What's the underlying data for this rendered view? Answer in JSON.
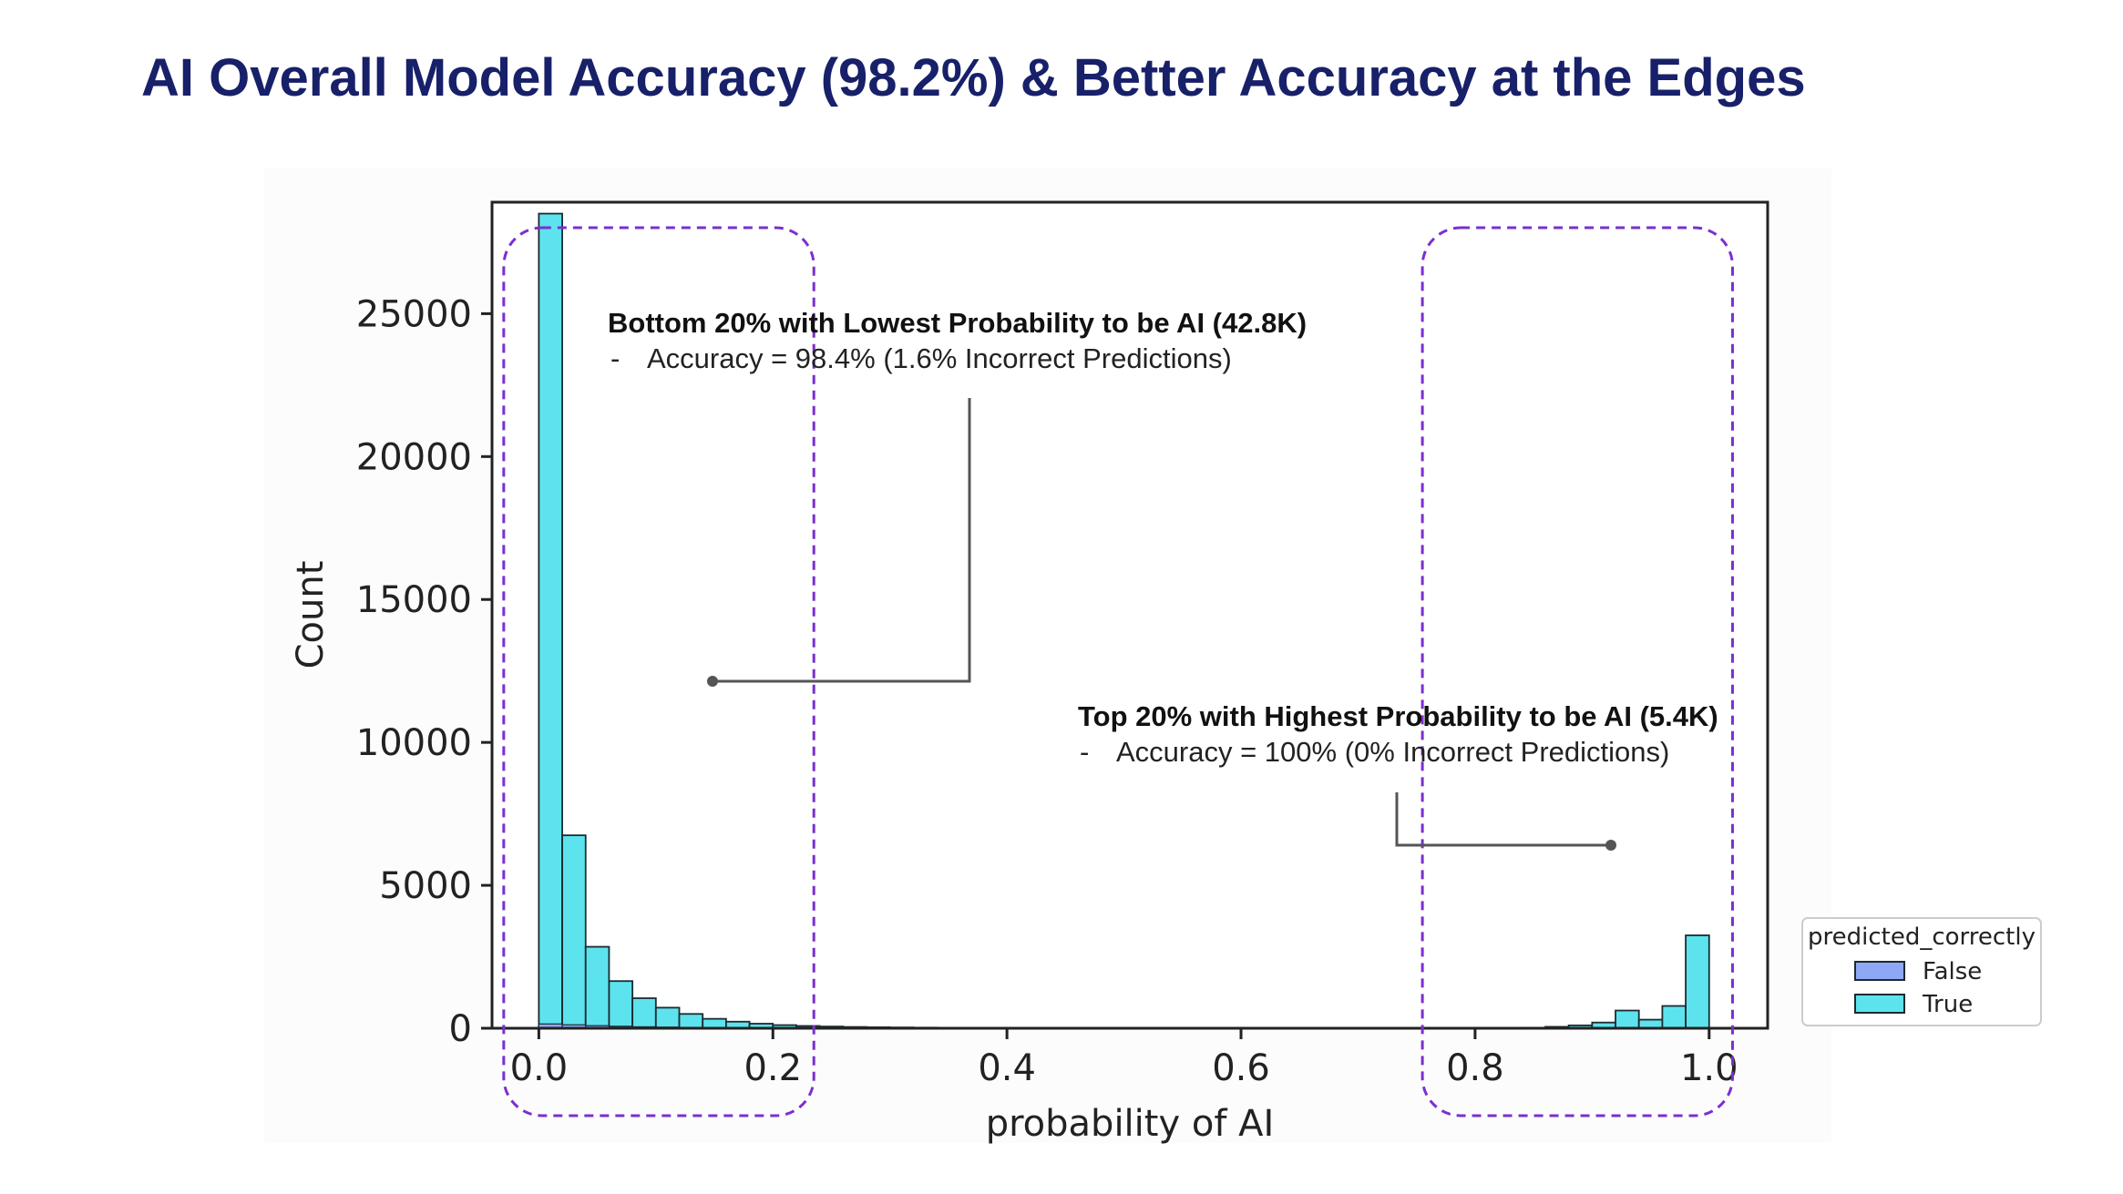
{
  "slide": {
    "title": "AI Overall Model Accuracy (98.2%) & Better Accuracy at the Edges"
  },
  "colors": {
    "title": "#172069",
    "true_bar": "#5de3ee",
    "false_bar": "#8fa8f5",
    "bar_edge": "#1c2a30",
    "highlight_box": "#7b2fd0",
    "callout_line": "#555555"
  },
  "chart_data": {
    "type": "bar",
    "xlabel": "probability of AI",
    "ylabel": "Count",
    "xlim": [
      -0.04,
      1.05
    ],
    "ylim": [
      0,
      28900
    ],
    "bin_width": 0.02,
    "x_ticks": [
      "0.0",
      "0.2",
      "0.4",
      "0.6",
      "0.8",
      "1.0"
    ],
    "x_tick_values": [
      0.0,
      0.2,
      0.4,
      0.6,
      0.8,
      1.0
    ],
    "y_ticks": [
      "0",
      "5000",
      "10000",
      "15000",
      "20000",
      "25000"
    ],
    "y_tick_values": [
      0,
      5000,
      10000,
      15000,
      20000,
      25000
    ],
    "grid": false,
    "legend": {
      "title": "predicted_correctly",
      "placement": "outside-right-bottom",
      "entries": [
        "False",
        "True"
      ]
    },
    "series": [
      {
        "name": "True",
        "bins": [
          {
            "x": 0.0,
            "count": 28500
          },
          {
            "x": 0.02,
            "count": 6750
          },
          {
            "x": 0.04,
            "count": 2850
          },
          {
            "x": 0.06,
            "count": 1650
          },
          {
            "x": 0.08,
            "count": 1050
          },
          {
            "x": 0.1,
            "count": 720
          },
          {
            "x": 0.12,
            "count": 500
          },
          {
            "x": 0.14,
            "count": 330
          },
          {
            "x": 0.16,
            "count": 230
          },
          {
            "x": 0.18,
            "count": 160
          },
          {
            "x": 0.2,
            "count": 110
          },
          {
            "x": 0.22,
            "count": 80
          },
          {
            "x": 0.24,
            "count": 60
          },
          {
            "x": 0.26,
            "count": 45
          },
          {
            "x": 0.28,
            "count": 35
          },
          {
            "x": 0.3,
            "count": 28
          },
          {
            "x": 0.32,
            "count": 22
          },
          {
            "x": 0.34,
            "count": 18
          },
          {
            "x": 0.36,
            "count": 15
          },
          {
            "x": 0.38,
            "count": 12
          },
          {
            "x": 0.84,
            "count": 20
          },
          {
            "x": 0.86,
            "count": 50
          },
          {
            "x": 0.88,
            "count": 100
          },
          {
            "x": 0.9,
            "count": 200
          },
          {
            "x": 0.92,
            "count": 620
          },
          {
            "x": 0.94,
            "count": 300
          },
          {
            "x": 0.96,
            "count": 780
          },
          {
            "x": 0.98,
            "count": 3250
          }
        ]
      },
      {
        "name": "False",
        "bins": [
          {
            "x": 0.0,
            "count": 150
          },
          {
            "x": 0.02,
            "count": 120
          },
          {
            "x": 0.04,
            "count": 90
          },
          {
            "x": 0.06,
            "count": 70
          },
          {
            "x": 0.08,
            "count": 50
          },
          {
            "x": 0.1,
            "count": 40
          },
          {
            "x": 0.12,
            "count": 30
          },
          {
            "x": 0.14,
            "count": 25
          }
        ]
      }
    ],
    "highlight_regions": [
      {
        "x_range": [
          -0.03,
          0.235
        ]
      },
      {
        "x_range": [
          0.755,
          1.02
        ]
      }
    ],
    "annotations": [
      {
        "title": "Bottom 20% with Lowest Probability to be AI (42.8K)",
        "bullet": "-",
        "detail": "Accuracy = 98.4% (1.6% Incorrect Predictions)"
      },
      {
        "title": "Top 20% with Highest Probability to be AI (5.4K)",
        "bullet": "-",
        "detail": "Accuracy = 100% (0% Incorrect Predictions)"
      }
    ]
  }
}
